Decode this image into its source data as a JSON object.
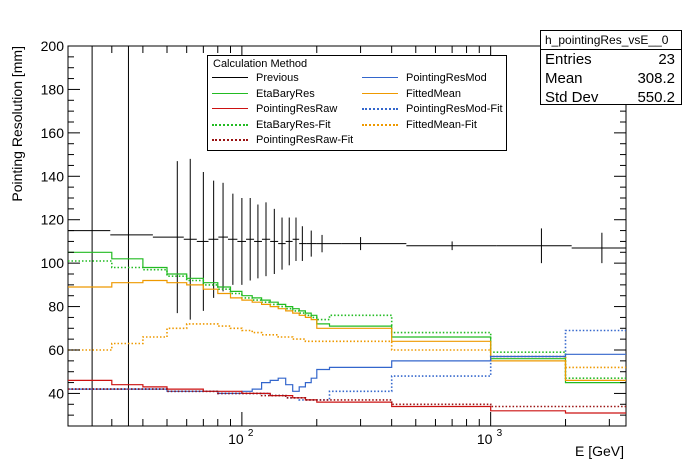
{
  "stats": {
    "title": "h_pointingRes_vsE__0",
    "rows": [
      {
        "key": "Entries",
        "value": "23"
      },
      {
        "key": "Mean",
        "value": "308.2"
      },
      {
        "key": "Std Dev",
        "value": "550.2"
      }
    ]
  },
  "legend": {
    "title": "Calculation Method",
    "items": [
      {
        "label": "Previous",
        "color": "#000000",
        "style": "solid"
      },
      {
        "label": "EtaBaryRes",
        "color": "#22bb22",
        "style": "solid"
      },
      {
        "label": "PointingResRaw",
        "color": "#cc1111",
        "style": "solid"
      },
      {
        "label": "EtaBaryRes-Fit",
        "color": "#22bb22",
        "style": "dotted"
      },
      {
        "label": "PointingResRaw-Fit",
        "color": "#991111",
        "style": "dotted"
      },
      {
        "label": "PointingResMod",
        "color": "#3366cc",
        "style": "solid"
      },
      {
        "label": "FittedMean",
        "color": "#ee9900",
        "style": "solid"
      },
      {
        "label": "PointingResMod-Fit",
        "color": "#3366cc",
        "style": "dotted"
      },
      {
        "label": "FittedMean-Fit",
        "color": "#ee9900",
        "style": "dotted"
      }
    ]
  },
  "chart_data": {
    "type": "line",
    "xscale": "log",
    "xlim": [
      20,
      3500
    ],
    "ylim": [
      25,
      200
    ],
    "xlabel": "E [GeV]",
    "ylabel": "Pointing Resolution [mm]",
    "yticks": [
      40,
      60,
      80,
      100,
      120,
      140,
      160,
      180,
      200
    ],
    "xticks": [
      {
        "value": 100,
        "base": "10",
        "exp": "2"
      },
      {
        "value": 1000,
        "base": "10",
        "exp": "3"
      }
    ],
    "series": [
      {
        "name": "Previous",
        "color": "#000000",
        "style": "solid",
        "kind": "points",
        "x": [
          25,
          35,
          55,
          62,
          70,
          77,
          84,
          92,
          100,
          108,
          116,
          125,
          135,
          145,
          155,
          165,
          175,
          190,
          210,
          300,
          700,
          1600,
          2800
        ],
        "y": [
          115,
          113,
          112,
          111,
          110,
          111,
          112,
          111,
          110,
          111,
          110,
          111,
          110,
          109,
          110,
          111,
          109,
          109,
          109,
          109,
          108,
          108,
          107
        ],
        "err": [
          200,
          200,
          35,
          37,
          32,
          27,
          25,
          21,
          20,
          19,
          17,
          17,
          15,
          12,
          11,
          10,
          8,
          6,
          4,
          3,
          2,
          8,
          7
        ]
      },
      {
        "name": "EtaBaryRes",
        "color": "#22bb22",
        "style": "step",
        "edges": [
          20,
          30,
          40,
          50,
          60,
          70,
          80,
          90,
          100,
          110,
          120,
          130,
          140,
          150,
          160,
          170,
          180,
          190,
          200,
          225,
          400,
          1000,
          2000,
          3500
        ],
        "values": [
          105,
          102,
          98,
          95,
          93,
          91,
          89,
          87,
          85,
          84,
          83,
          82,
          81,
          80,
          79,
          78,
          77,
          76,
          72,
          71,
          66,
          56,
          45
        ]
      },
      {
        "name": "EtaBaryRes-Fit",
        "color": "#22bb22",
        "style": "dotted",
        "edges": [
          20,
          30,
          40,
          50,
          60,
          70,
          80,
          90,
          100,
          110,
          120,
          130,
          140,
          150,
          160,
          170,
          180,
          190,
          200,
          225,
          400,
          1000,
          2000,
          3500
        ],
        "values": [
          101,
          98,
          97,
          94,
          92,
          90,
          88,
          86,
          84,
          83,
          82,
          81,
          80,
          79,
          78,
          77,
          76,
          75,
          74,
          76,
          68,
          59,
          47
        ]
      },
      {
        "name": "FittedMean",
        "color": "#ee9900",
        "style": "step",
        "edges": [
          20,
          30,
          40,
          50,
          60,
          70,
          80,
          90,
          100,
          110,
          120,
          130,
          140,
          150,
          160,
          170,
          180,
          190,
          200,
          225,
          400,
          1000,
          2000,
          3500
        ],
        "values": [
          89,
          91,
          92,
          91,
          90,
          88,
          86,
          84,
          83,
          82,
          81,
          80,
          79,
          78,
          77,
          76,
          75,
          74,
          70,
          70,
          64,
          55,
          46
        ]
      },
      {
        "name": "FittedMean-Fit",
        "color": "#ee9900",
        "style": "dotted",
        "edges": [
          20,
          30,
          40,
          50,
          60,
          70,
          80,
          90,
          100,
          110,
          120,
          130,
          140,
          150,
          160,
          170,
          180,
          190,
          200,
          225,
          400,
          1000,
          2000,
          3500
        ],
        "values": [
          60,
          63,
          66,
          70,
          72,
          72,
          71,
          70,
          69,
          68,
          67,
          67,
          66,
          66,
          65,
          65,
          64,
          64,
          64,
          64,
          60,
          57,
          52
        ]
      },
      {
        "name": "PointingResMod",
        "color": "#3366cc",
        "style": "step",
        "edges": [
          20,
          30,
          40,
          50,
          60,
          70,
          80,
          90,
          100,
          110,
          120,
          130,
          140,
          150,
          160,
          170,
          180,
          190,
          200,
          225,
          400,
          1000,
          2000,
          3500
        ],
        "values": [
          42,
          42,
          42,
          41,
          41,
          41,
          40,
          40,
          41,
          42,
          45,
          46,
          47,
          44,
          41,
          43,
          45,
          47,
          51,
          52,
          55,
          57,
          58
        ]
      },
      {
        "name": "PointingResMod-Fit",
        "color": "#3366cc",
        "style": "dotted",
        "edges": [
          20,
          30,
          40,
          50,
          60,
          70,
          80,
          90,
          100,
          110,
          120,
          130,
          140,
          150,
          160,
          170,
          180,
          190,
          200,
          225,
          400,
          1000,
          2000,
          3500
        ],
        "values": [
          42,
          42,
          42,
          41,
          41,
          41,
          40,
          40,
          40,
          40,
          40,
          39,
          39,
          38,
          38,
          37,
          37,
          37,
          37,
          41,
          48,
          57,
          69
        ]
      },
      {
        "name": "PointingResRaw",
        "color": "#cc1111",
        "style": "step",
        "edges": [
          20,
          30,
          40,
          50,
          60,
          70,
          80,
          90,
          100,
          110,
          120,
          130,
          140,
          150,
          160,
          170,
          180,
          190,
          200,
          225,
          400,
          1000,
          2000,
          3500
        ],
        "values": [
          46,
          44,
          43,
          42,
          42,
          41,
          41,
          41,
          40,
          40,
          40,
          39,
          39,
          39,
          38,
          38,
          37,
          37,
          36,
          36,
          34,
          32,
          31
        ]
      },
      {
        "name": "PointingResRaw-Fit",
        "color": "#991111",
        "style": "dotted",
        "edges": [
          20,
          30,
          40,
          50,
          60,
          70,
          80,
          90,
          100,
          110,
          120,
          130,
          140,
          150,
          160,
          170,
          180,
          190,
          200,
          225,
          400,
          1000,
          2000,
          3500
        ],
        "values": [
          42,
          42,
          42,
          41,
          41,
          41,
          40,
          40,
          40,
          40,
          39,
          39,
          39,
          38,
          38,
          38,
          37,
          37,
          37,
          37,
          35,
          34,
          34
        ]
      }
    ]
  }
}
